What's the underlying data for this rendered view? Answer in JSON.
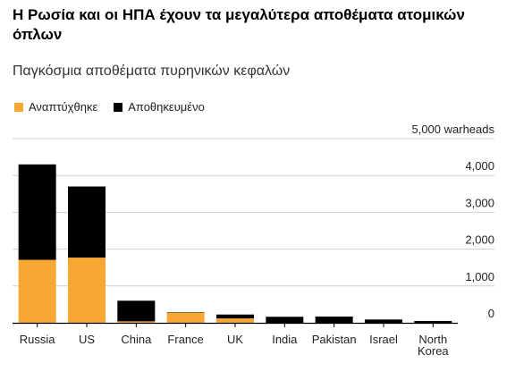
{
  "header": {
    "title": "Η Ρωσία και οι ΗΠΑ έχουν τα μεγαλύτερα αποθέματα ατομικών όπλων",
    "subtitle": "Παγκόσμια αποθέματα πυρηνικών κεφαλών"
  },
  "colors": {
    "deployed": "#f7a833",
    "stored": "#000000",
    "grid": "#cfcfcf",
    "baseline": "#000000"
  },
  "chart_data": {
    "type": "bar",
    "stacked": true,
    "categories": [
      "Russia",
      "US",
      "China",
      "France",
      "UK",
      "India",
      "Pakistan",
      "Israel",
      "North Korea"
    ],
    "category_lines": [
      [
        "Russia"
      ],
      [
        "US"
      ],
      [
        "China"
      ],
      [
        "France"
      ],
      [
        "UK"
      ],
      [
        "India"
      ],
      [
        "Pakistan"
      ],
      [
        "Israel"
      ],
      [
        "North",
        "Korea"
      ]
    ],
    "series": [
      {
        "name": "Αναπτύχθηκε",
        "values": [
          1710,
          1770,
          40,
          280,
          120,
          0,
          0,
          0,
          0
        ]
      },
      {
        "name": "Αποθηκευμένο",
        "values": [
          2590,
          1930,
          560,
          10,
          105,
          164,
          170,
          90,
          50
        ]
      }
    ],
    "yaxis": {
      "range": [
        0,
        5000
      ],
      "ticks": [
        0,
        1000,
        2000,
        3000,
        4000,
        5000
      ],
      "tick_labels": [
        "0",
        "1,000",
        "2,000",
        "3,000",
        "4,000",
        "5,000 warheads"
      ]
    },
    "grid": true,
    "legend_position": "top-left"
  }
}
